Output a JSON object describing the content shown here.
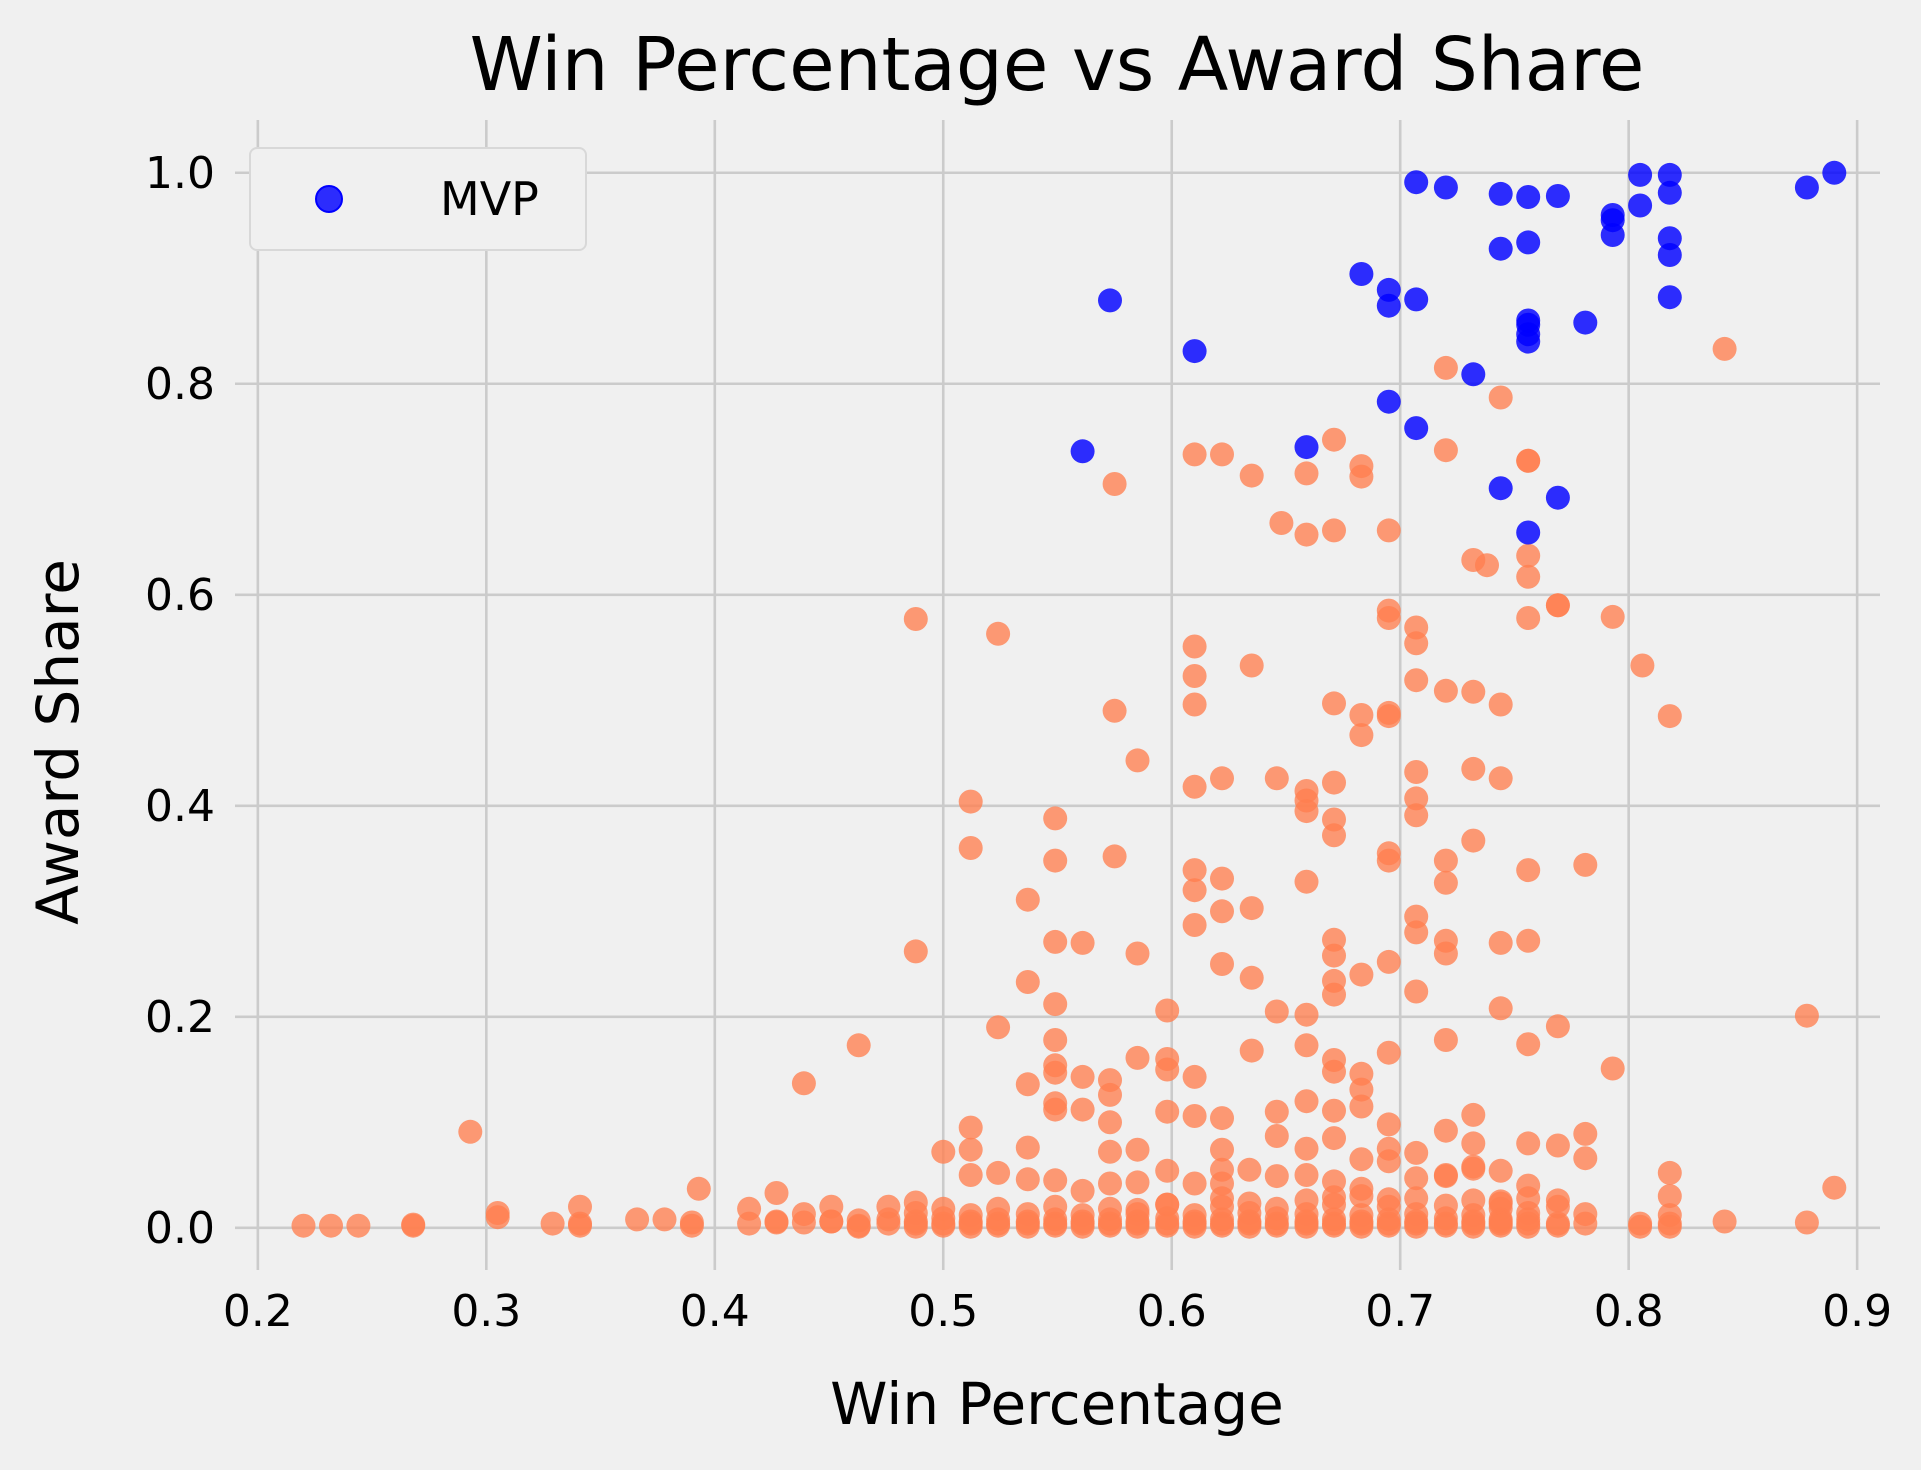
{
  "chart_data": {
    "type": "scatter",
    "title": "Win Percentage vs Award Share",
    "xlabel": "Win Percentage",
    "ylabel": "Award Share",
    "xlim": [
      0.19,
      0.91
    ],
    "ylim": [
      -0.04,
      1.05
    ],
    "xticks": [
      0.2,
      0.3,
      0.4,
      0.5,
      0.6,
      0.7,
      0.8,
      0.9
    ],
    "xtick_labels": [
      "0.2",
      "0.3",
      "0.4",
      "0.5",
      "0.6",
      "0.7",
      "0.8",
      "0.9"
    ],
    "yticks": [
      0.0,
      0.2,
      0.4,
      0.6,
      0.8,
      1.0
    ],
    "ytick_labels": [
      "0.0",
      "0.2",
      "0.4",
      "0.6",
      "0.8",
      "1.0"
    ],
    "grid": true,
    "legend_position": "top-left",
    "series": [
      {
        "name": "",
        "color": "#ff7f50",
        "x": [
          0.842,
          0.72,
          0.744,
          0.575,
          0.72,
          0.769,
          0.756,
          0.756,
          0.61,
          0.622,
          0.671,
          0.683,
          0.683,
          0.635,
          0.659,
          0.648,
          0.659,
          0.695,
          0.671,
          0.732,
          0.738,
          0.756,
          0.756,
          0.756,
          0.695,
          0.695,
          0.769,
          0.793,
          0.695,
          0.707,
          0.707,
          0.488,
          0.524,
          0.61,
          0.61,
          0.707,
          0.806,
          0.635,
          0.72,
          0.732,
          0.707,
          0.695,
          0.575,
          0.671,
          0.683,
          0.61,
          0.744,
          0.818,
          0.683,
          0.707,
          0.585,
          0.732,
          0.744,
          0.622,
          0.646,
          0.659,
          0.671,
          0.61,
          0.659,
          0.707,
          0.659,
          0.512,
          0.549,
          0.671,
          0.671,
          0.732,
          0.512,
          0.72,
          0.695,
          0.575,
          0.549,
          0.781,
          0.61,
          0.756,
          0.72,
          0.659,
          0.622,
          0.61,
          0.537,
          0.635,
          0.622,
          0.61,
          0.707,
          0.695,
          0.744,
          0.756,
          0.72,
          0.707,
          0.549,
          0.561,
          0.671,
          0.585,
          0.622,
          0.72,
          0.695,
          0.488,
          0.671,
          0.683,
          0.707,
          0.537,
          0.635,
          0.671,
          0.671,
          0.549,
          0.744,
          0.646,
          0.598,
          0.659,
          0.878,
          0.524,
          0.769,
          0.549,
          0.756,
          0.463,
          0.659,
          0.72,
          0.671,
          0.635,
          0.585,
          0.598,
          0.598,
          0.671,
          0.695,
          0.549,
          0.549,
          0.561,
          0.793,
          0.683,
          0.61,
          0.573,
          0.439,
          0.537,
          0.549,
          0.683,
          0.573,
          0.659,
          0.549,
          0.561,
          0.598,
          0.646,
          0.293,
          0.72,
          0.512,
          0.671,
          0.683,
          0.61,
          0.622,
          0.732,
          0.573,
          0.695,
          0.781,
          0.732,
          0.537,
          0.646,
          0.671,
          0.756,
          0.769,
          0.622,
          0.707,
          0.695,
          0.5,
          0.512,
          0.573,
          0.585,
          0.659,
          0.781,
          0.683,
          0.598,
          0.695,
          0.732,
          0.818,
          0.732,
          0.72,
          0.744,
          0.537,
          0.622,
          0.524,
          0.634,
          0.659,
          0.646,
          0.549,
          0.707,
          0.756,
          0.573,
          0.585,
          0.671,
          0.622,
          0.683,
          0.61,
          0.72,
          0.393,
          0.512,
          0.427,
          0.561,
          0.634,
          0.818,
          0.341,
          0.598,
          0.744,
          0.488,
          0.744,
          0.756,
          0.683,
          0.707,
          0.659,
          0.671,
          0.695,
          0.732,
          0.769,
          0.622,
          0.585,
          0.415,
          0.451,
          0.476,
          0.5,
          0.524,
          0.549,
          0.573,
          0.598,
          0.622,
          0.646,
          0.671,
          0.695,
          0.72,
          0.744,
          0.769,
          0.305,
          0.439,
          0.488,
          0.512,
          0.537,
          0.561,
          0.585,
          0.61,
          0.634,
          0.659,
          0.683,
          0.707,
          0.732,
          0.756,
          0.781,
          0.818,
          0.89,
          0.366,
          0.463,
          0.476,
          0.5,
          0.524,
          0.549,
          0.573,
          0.598,
          0.622,
          0.646,
          0.671,
          0.695,
          0.72,
          0.744,
          0.756,
          0.427,
          0.451,
          0.488,
          0.512,
          0.537,
          0.561,
          0.585,
          0.61,
          0.634,
          0.659,
          0.683,
          0.707,
          0.732,
          0.744,
          0.22,
          0.232,
          0.244,
          0.268,
          0.268,
          0.305,
          0.329,
          0.341,
          0.341,
          0.378,
          0.39,
          0.39,
          0.415,
          0.427,
          0.439,
          0.451,
          0.463,
          0.476,
          0.488,
          0.5,
          0.512,
          0.524,
          0.537,
          0.549,
          0.561,
          0.573,
          0.585,
          0.598,
          0.61,
          0.622,
          0.634,
          0.646,
          0.659,
          0.671,
          0.683,
          0.695,
          0.707,
          0.72,
          0.732,
          0.744,
          0.756,
          0.769,
          0.781,
          0.805,
          0.818,
          0.842,
          0.878,
          0.463,
          0.488,
          0.512,
          0.537,
          0.561,
          0.585,
          0.61,
          0.634,
          0.659,
          0.683,
          0.707,
          0.732,
          0.756,
          0.805,
          0.818,
          0.5,
          0.524,
          0.549,
          0.573,
          0.598,
          0.622,
          0.646,
          0.671,
          0.695,
          0.72,
          0.744,
          0.769
        ],
        "y": [
          0.833,
          0.815,
          0.787,
          0.705,
          0.737,
          0.59,
          0.727,
          0.637,
          0.733,
          0.733,
          0.747,
          0.722,
          0.712,
          0.713,
          0.715,
          0.668,
          0.657,
          0.661,
          0.661,
          0.633,
          0.628,
          0.617,
          0.578,
          0.727,
          0.585,
          0.578,
          0.59,
          0.579,
          0.485,
          0.569,
          0.554,
          0.577,
          0.563,
          0.551,
          0.523,
          0.519,
          0.533,
          0.533,
          0.509,
          0.508,
          0.432,
          0.488,
          0.49,
          0.497,
          0.486,
          0.496,
          0.496,
          0.485,
          0.467,
          0.407,
          0.443,
          0.435,
          0.426,
          0.426,
          0.426,
          0.405,
          0.422,
          0.418,
          0.414,
          0.391,
          0.395,
          0.404,
          0.388,
          0.387,
          0.372,
          0.367,
          0.36,
          0.348,
          0.355,
          0.352,
          0.348,
          0.344,
          0.339,
          0.339,
          0.327,
          0.328,
          0.331,
          0.32,
          0.311,
          0.303,
          0.3,
          0.287,
          0.295,
          0.348,
          0.27,
          0.272,
          0.272,
          0.28,
          0.271,
          0.27,
          0.273,
          0.26,
          0.25,
          0.26,
          0.252,
          0.262,
          0.258,
          0.24,
          0.224,
          0.233,
          0.237,
          0.234,
          0.221,
          0.212,
          0.208,
          0.205,
          0.206,
          0.202,
          0.201,
          0.19,
          0.191,
          0.178,
          0.174,
          0.173,
          0.173,
          0.178,
          0.159,
          0.168,
          0.161,
          0.16,
          0.15,
          0.148,
          0.166,
          0.154,
          0.147,
          0.143,
          0.151,
          0.146,
          0.143,
          0.14,
          0.137,
          0.136,
          0.118,
          0.131,
          0.126,
          0.12,
          0.112,
          0.112,
          0.11,
          0.11,
          0.091,
          0.092,
          0.095,
          0.111,
          0.115,
          0.106,
          0.104,
          0.107,
          0.1,
          0.098,
          0.089,
          0.08,
          0.076,
          0.087,
          0.085,
          0.08,
          0.078,
          0.074,
          0.071,
          0.075,
          0.072,
          0.074,
          0.072,
          0.074,
          0.075,
          0.066,
          0.065,
          0.054,
          0.063,
          0.056,
          0.052,
          0.058,
          0.05,
          0.054,
          0.046,
          0.055,
          0.052,
          0.055,
          0.05,
          0.049,
          0.045,
          0.047,
          0.04,
          0.042,
          0.043,
          0.044,
          0.042,
          0.037,
          0.042,
          0.049,
          0.037,
          0.05,
          0.033,
          0.035,
          0.023,
          0.03,
          0.02,
          0.022,
          0.023,
          0.024,
          0.025,
          0.028,
          0.03,
          0.028,
          0.026,
          0.029,
          0.027,
          0.026,
          0.026,
          0.028,
          0.017,
          0.018,
          0.02,
          0.02,
          0.018,
          0.018,
          0.02,
          0.018,
          0.022,
          0.02,
          0.018,
          0.022,
          0.02,
          0.021,
          0.018,
          0.02,
          0.014,
          0.013,
          0.014,
          0.012,
          0.013,
          0.012,
          0.013,
          0.012,
          0.014,
          0.013,
          0.012,
          0.013,
          0.012,
          0.014,
          0.013,
          0.012,
          0.038,
          0.008,
          0.007,
          0.008,
          0.009,
          0.008,
          0.008,
          0.008,
          0.009,
          0.008,
          0.009,
          0.008,
          0.008,
          0.009,
          0.008,
          0.008,
          0.006,
          0.006,
          0.006,
          0.006,
          0.006,
          0.006,
          0.006,
          0.006,
          0.006,
          0.006,
          0.006,
          0.006,
          0.006,
          0.006,
          0.002,
          0.002,
          0.002,
          0.002,
          0.003,
          0.01,
          0.004,
          0.004,
          0.002,
          0.008,
          0.005,
          0.002,
          0.004,
          0.005,
          0.005,
          0.006,
          0.002,
          0.004,
          0.004,
          0.004,
          0.004,
          0.004,
          0.004,
          0.004,
          0.004,
          0.004,
          0.004,
          0.004,
          0.004,
          0.004,
          0.004,
          0.004,
          0.004,
          0.004,
          0.004,
          0.004,
          0.004,
          0.004,
          0.004,
          0.004,
          0.004,
          0.004,
          0.004,
          0.004,
          0.004,
          0.006,
          0.005,
          0.001,
          0.001,
          0.001,
          0.001,
          0.001,
          0.001,
          0.001,
          0.001,
          0.001,
          0.001,
          0.001,
          0.001,
          0.001,
          0.001,
          0.001,
          0.002,
          0.002,
          0.002,
          0.002,
          0.002,
          0.002,
          0.002,
          0.002,
          0.002,
          0.002,
          0.002,
          0.002
        ]
      },
      {
        "name": "MVP",
        "color": "#0000ff",
        "x": [
          0.89,
          0.805,
          0.818,
          0.707,
          0.72,
          0.744,
          0.756,
          0.769,
          0.878,
          0.818,
          0.805,
          0.793,
          0.793,
          0.793,
          0.818,
          0.756,
          0.744,
          0.818,
          0.683,
          0.695,
          0.695,
          0.707,
          0.818,
          0.573,
          0.756,
          0.756,
          0.756,
          0.781,
          0.756,
          0.61,
          0.732,
          0.695,
          0.707,
          0.659,
          0.561,
          0.744,
          0.769,
          0.756
        ],
        "y": [
          1.0,
          0.998,
          0.998,
          0.991,
          0.986,
          0.98,
          0.977,
          0.978,
          0.986,
          0.981,
          0.969,
          0.96,
          0.955,
          0.941,
          0.938,
          0.934,
          0.928,
          0.922,
          0.904,
          0.889,
          0.874,
          0.88,
          0.882,
          0.879,
          0.86,
          0.856,
          0.84,
          0.858,
          0.847,
          0.831,
          0.809,
          0.783,
          0.758,
          0.74,
          0.736,
          0.701,
          0.692,
          0.659
        ]
      }
    ]
  }
}
